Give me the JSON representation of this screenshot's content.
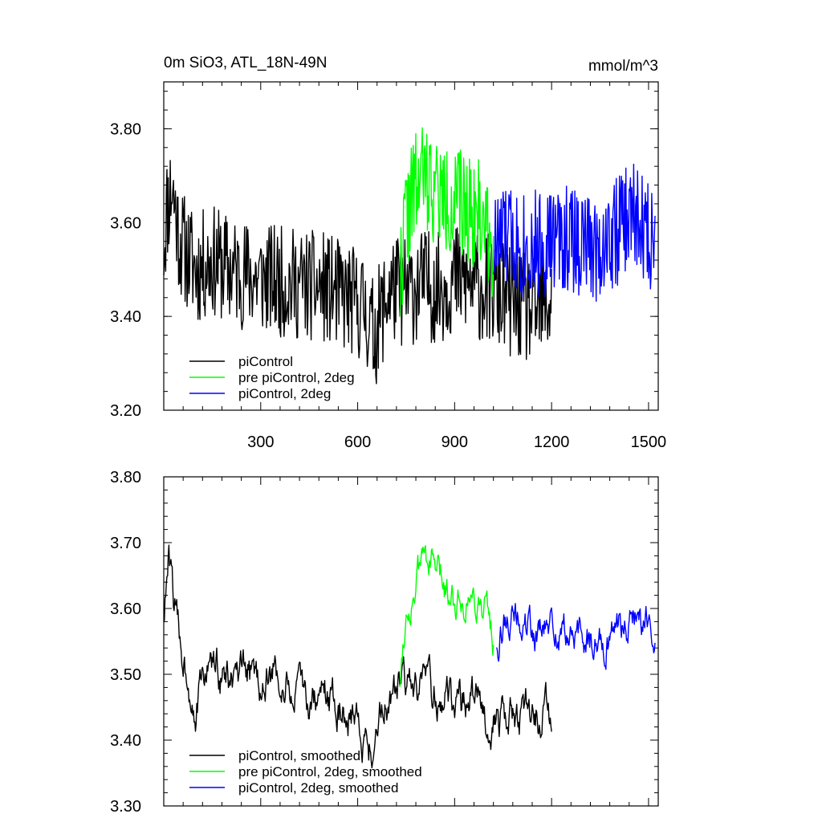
{
  "chart_data": [
    {
      "type": "line",
      "title": "0m SiO3, ATL_18N-49N",
      "units": "mmol/m^3",
      "xlim": [
        0,
        1530
      ],
      "ylim": [
        3.2,
        3.9
      ],
      "x_ticks": [
        300,
        600,
        900,
        1200,
        1500
      ],
      "x_tick_labels": [
        "300",
        "600",
        "900",
        "1200",
        "1500"
      ],
      "y_ticks": [
        3.2,
        3.4,
        3.6,
        3.8
      ],
      "y_tick_labels": [
        "3.20",
        "3.40",
        "3.60",
        "3.80"
      ],
      "legend_position": "bottom-left",
      "series": [
        {
          "name": "piControl",
          "color": "#000000",
          "x_start": 0,
          "x_end": 1200,
          "anchors": [
            [
              0,
              3.55
            ],
            [
              10,
              3.63
            ],
            [
              25,
              3.68
            ],
            [
              50,
              3.56
            ],
            [
              100,
              3.5
            ],
            [
              150,
              3.52
            ],
            [
              200,
              3.5
            ],
            [
              300,
              3.48
            ],
            [
              400,
              3.47
            ],
            [
              500,
              3.46
            ],
            [
              560,
              3.44
            ],
            [
              620,
              3.42
            ],
            [
              650,
              3.36
            ],
            [
              700,
              3.46
            ],
            [
              750,
              3.45
            ],
            [
              800,
              3.47
            ],
            [
              850,
              3.46
            ],
            [
              900,
              3.48
            ],
            [
              950,
              3.47
            ],
            [
              1000,
              3.46
            ],
            [
              1050,
              3.44
            ],
            [
              1100,
              3.42
            ],
            [
              1150,
              3.41
            ],
            [
              1200,
              3.43
            ]
          ],
          "amplitude": 0.12,
          "seed": 11
        },
        {
          "name": "pre piControl, 2deg",
          "color": "#00ff00",
          "x_start": 730,
          "x_end": 1020,
          "anchors": [
            [
              730,
              3.46
            ],
            [
              745,
              3.6
            ],
            [
              770,
              3.66
            ],
            [
              800,
              3.7
            ],
            [
              830,
              3.68
            ],
            [
              860,
              3.65
            ],
            [
              900,
              3.64
            ],
            [
              950,
              3.63
            ],
            [
              1000,
              3.6
            ],
            [
              1020,
              3.55
            ]
          ],
          "amplitude": 0.12,
          "seed": 22
        },
        {
          "name": "piControl, 2deg",
          "color": "#0000ff",
          "x_start": 1020,
          "x_end": 1520,
          "anchors": [
            [
              1020,
              3.55
            ],
            [
              1050,
              3.57
            ],
            [
              1100,
              3.56
            ],
            [
              1150,
              3.55
            ],
            [
              1200,
              3.56
            ],
            [
              1250,
              3.57
            ],
            [
              1300,
              3.55
            ],
            [
              1350,
              3.55
            ],
            [
              1400,
              3.58
            ],
            [
              1450,
              3.62
            ],
            [
              1500,
              3.57
            ],
            [
              1520,
              3.58
            ]
          ],
          "amplitude": 0.12,
          "seed": 33
        }
      ]
    },
    {
      "type": "line",
      "title": "",
      "units": "",
      "xlim": [
        0,
        1530
      ],
      "ylim": [
        3.3,
        3.8
      ],
      "x_ticks": [
        300,
        600,
        900,
        1200,
        1500
      ],
      "y_ticks": [
        3.3,
        3.4,
        3.5,
        3.6,
        3.7,
        3.8
      ],
      "y_tick_labels": [
        "3.30",
        "3.40",
        "3.50",
        "3.60",
        "3.70",
        "3.80"
      ],
      "legend_position": "bottom-left",
      "series": [
        {
          "name": "piControl, smoothed",
          "color": "#000000",
          "x_start": 0,
          "x_end": 1200,
          "anchors": [
            [
              0,
              3.59
            ],
            [
              15,
              3.67
            ],
            [
              30,
              3.62
            ],
            [
              50,
              3.55
            ],
            [
              80,
              3.49
            ],
            [
              100,
              3.45
            ],
            [
              140,
              3.52
            ],
            [
              180,
              3.5
            ],
            [
              220,
              3.48
            ],
            [
              260,
              3.5
            ],
            [
              300,
              3.49
            ],
            [
              350,
              3.5
            ],
            [
              400,
              3.47
            ],
            [
              450,
              3.46
            ],
            [
              500,
              3.47
            ],
            [
              550,
              3.45
            ],
            [
              600,
              3.43
            ],
            [
              640,
              3.38
            ],
            [
              660,
              3.43
            ],
            [
              700,
              3.47
            ],
            [
              750,
              3.48
            ],
            [
              800,
              3.47
            ],
            [
              850,
              3.47
            ],
            [
              900,
              3.46
            ],
            [
              950,
              3.46
            ],
            [
              1000,
              3.44
            ],
            [
              1050,
              3.43
            ],
            [
              1100,
              3.44
            ],
            [
              1150,
              3.44
            ],
            [
              1200,
              3.44
            ]
          ],
          "amplitude": 0.04,
          "seed": 44
        },
        {
          "name": "pre piControl, 2deg, smoothed",
          "color": "#00ff00",
          "x_start": 730,
          "x_end": 1020,
          "anchors": [
            [
              730,
              3.49
            ],
            [
              745,
              3.58
            ],
            [
              770,
              3.62
            ],
            [
              810,
              3.69
            ],
            [
              840,
              3.66
            ],
            [
              870,
              3.63
            ],
            [
              900,
              3.62
            ],
            [
              950,
              3.62
            ],
            [
              1000,
              3.6
            ],
            [
              1020,
              3.55
            ]
          ],
          "amplitude": 0.035,
          "seed": 55
        },
        {
          "name": "piControl, 2deg, smoothed",
          "color": "#0000ff",
          "x_start": 1030,
          "x_end": 1520,
          "anchors": [
            [
              1030,
              3.55
            ],
            [
              1060,
              3.59
            ],
            [
              1100,
              3.58
            ],
            [
              1150,
              3.56
            ],
            [
              1200,
              3.57
            ],
            [
              1250,
              3.56
            ],
            [
              1300,
              3.55
            ],
            [
              1350,
              3.55
            ],
            [
              1400,
              3.57
            ],
            [
              1450,
              3.59
            ],
            [
              1500,
              3.58
            ],
            [
              1520,
              3.56
            ]
          ],
          "amplitude": 0.035,
          "seed": 66
        }
      ]
    }
  ]
}
